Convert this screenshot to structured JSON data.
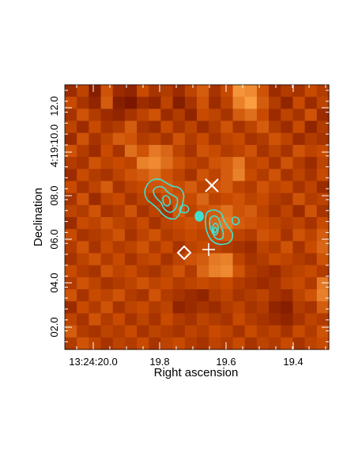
{
  "chart_data": {
    "type": "heatmap",
    "xlabel": "Right ascension",
    "ylabel": "Declination",
    "x_ticks": [
      "13:24:20.0",
      "19.8",
      "19.6",
      "19.4"
    ],
    "y_ticks": [
      "02.0",
      "04.0",
      "06.0",
      "08.0",
      "4:19:10.0",
      "12.0"
    ],
    "grid": false,
    "colors": {
      "colormap_dark": "#5a0000",
      "colormap_mid": "#c84a00",
      "colormap_bright": "#ffa040",
      "contour": "#40e0d0",
      "markers": "#ffffff"
    },
    "heatmap": {
      "rows": 22,
      "cols": 22,
      "values": [
        [
          0.3,
          0.45,
          0.2,
          0.55,
          0.3,
          0.25,
          0.5,
          0.35,
          0.4,
          0.3,
          0.45,
          0.6,
          0.35,
          0.5,
          0.9,
          0.85,
          0.55,
          0.3,
          0.4,
          0.35,
          0.5,
          0.4
        ],
        [
          0.5,
          0.35,
          0.25,
          0.6,
          0.2,
          0.15,
          0.3,
          0.25,
          0.45,
          0.2,
          0.35,
          0.55,
          0.3,
          0.45,
          0.8,
          0.95,
          0.6,
          0.4,
          0.25,
          0.5,
          0.3,
          0.45
        ],
        [
          0.35,
          0.55,
          0.4,
          0.3,
          0.25,
          0.35,
          0.45,
          0.55,
          0.3,
          0.4,
          0.25,
          0.5,
          0.45,
          0.35,
          0.6,
          0.7,
          0.5,
          0.3,
          0.45,
          0.35,
          0.55,
          0.3
        ],
        [
          0.45,
          0.3,
          0.5,
          0.35,
          0.4,
          0.6,
          0.35,
          0.3,
          0.5,
          0.35,
          0.45,
          0.3,
          0.4,
          0.55,
          0.35,
          0.45,
          0.6,
          0.4,
          0.3,
          0.5,
          0.25,
          0.4
        ],
        [
          0.3,
          0.55,
          0.35,
          0.45,
          0.6,
          0.55,
          0.4,
          0.45,
          0.35,
          0.55,
          0.4,
          0.5,
          0.35,
          0.45,
          0.5,
          0.35,
          0.4,
          0.55,
          0.45,
          0.3,
          0.4,
          0.35
        ],
        [
          0.55,
          0.4,
          0.3,
          0.5,
          0.35,
          0.7,
          0.55,
          0.75,
          0.65,
          0.45,
          0.35,
          0.55,
          0.5,
          0.4,
          0.45,
          0.55,
          0.35,
          0.45,
          0.35,
          0.55,
          0.45,
          0.5
        ],
        [
          0.4,
          0.35,
          0.55,
          0.45,
          0.5,
          0.45,
          0.8,
          0.85,
          0.7,
          0.55,
          0.45,
          0.4,
          0.55,
          0.6,
          0.75,
          0.45,
          0.5,
          0.35,
          0.55,
          0.4,
          0.3,
          0.45
        ],
        [
          0.3,
          0.5,
          0.4,
          0.35,
          0.45,
          0.55,
          0.6,
          0.7,
          0.55,
          0.45,
          0.35,
          0.55,
          0.45,
          0.6,
          0.8,
          0.5,
          0.4,
          0.55,
          0.35,
          0.45,
          0.35,
          0.5
        ],
        [
          0.5,
          0.35,
          0.45,
          0.6,
          0.35,
          0.45,
          0.5,
          0.55,
          0.6,
          0.5,
          0.6,
          0.45,
          0.55,
          0.6,
          0.45,
          0.4,
          0.55,
          0.45,
          0.5,
          0.35,
          0.45,
          0.3
        ],
        [
          0.35,
          0.55,
          0.3,
          0.45,
          0.5,
          0.35,
          0.45,
          0.4,
          0.5,
          0.55,
          0.5,
          0.65,
          0.45,
          0.5,
          0.55,
          0.45,
          0.5,
          0.4,
          0.35,
          0.55,
          0.4,
          0.45
        ],
        [
          0.45,
          0.4,
          0.55,
          0.35,
          0.4,
          0.55,
          0.35,
          0.45,
          0.35,
          0.6,
          0.45,
          0.55,
          0.6,
          0.7,
          0.55,
          0.6,
          0.45,
          0.35,
          0.45,
          0.3,
          0.55,
          0.35
        ],
        [
          0.3,
          0.5,
          0.45,
          0.55,
          0.45,
          0.4,
          0.5,
          0.35,
          0.45,
          0.5,
          0.55,
          0.5,
          0.65,
          0.75,
          0.6,
          0.55,
          0.5,
          0.45,
          0.4,
          0.45,
          0.35,
          0.5
        ],
        [
          0.5,
          0.35,
          0.4,
          0.45,
          0.55,
          0.35,
          0.45,
          0.55,
          0.4,
          0.45,
          0.5,
          0.45,
          0.5,
          0.6,
          0.45,
          0.4,
          0.55,
          0.5,
          0.35,
          0.55,
          0.45,
          0.6
        ],
        [
          0.4,
          0.55,
          0.35,
          0.5,
          0.4,
          0.45,
          0.55,
          0.4,
          0.5,
          0.35,
          0.45,
          0.5,
          0.45,
          0.4,
          0.35,
          0.3,
          0.45,
          0.4,
          0.55,
          0.35,
          0.5,
          0.65
        ],
        [
          0.35,
          0.45,
          0.55,
          0.4,
          0.5,
          0.35,
          0.45,
          0.5,
          0.35,
          0.45,
          0.55,
          0.6,
          0.75,
          0.8,
          0.45,
          0.35,
          0.4,
          0.5,
          0.45,
          0.4,
          0.35,
          0.55
        ],
        [
          0.5,
          0.4,
          0.35,
          0.55,
          0.45,
          0.5,
          0.4,
          0.35,
          0.45,
          0.55,
          0.4,
          0.65,
          0.8,
          0.85,
          0.55,
          0.4,
          0.35,
          0.3,
          0.4,
          0.45,
          0.5,
          0.4
        ],
        [
          0.4,
          0.55,
          0.45,
          0.35,
          0.4,
          0.45,
          0.55,
          0.45,
          0.5,
          0.4,
          0.45,
          0.5,
          0.45,
          0.5,
          0.4,
          0.35,
          0.3,
          0.35,
          0.45,
          0.5,
          0.4,
          0.75
        ],
        [
          0.55,
          0.35,
          0.5,
          0.45,
          0.55,
          0.4,
          0.35,
          0.55,
          0.4,
          0.35,
          0.3,
          0.25,
          0.4,
          0.45,
          0.35,
          0.4,
          0.45,
          0.35,
          0.3,
          0.45,
          0.55,
          0.8
        ],
        [
          0.3,
          0.5,
          0.4,
          0.55,
          0.35,
          0.45,
          0.5,
          0.4,
          0.45,
          0.25,
          0.3,
          0.35,
          0.3,
          0.4,
          0.45,
          0.35,
          0.4,
          0.25,
          0.2,
          0.4,
          0.35,
          0.6
        ],
        [
          0.45,
          0.35,
          0.55,
          0.4,
          0.5,
          0.35,
          0.45,
          0.35,
          0.5,
          0.4,
          0.35,
          0.45,
          0.4,
          0.35,
          0.5,
          0.4,
          0.35,
          0.3,
          0.25,
          0.35,
          0.45,
          0.4
        ],
        [
          0.6,
          0.4,
          0.35,
          0.45,
          0.4,
          0.5,
          0.35,
          0.45,
          0.4,
          0.35,
          0.45,
          0.4,
          0.5,
          0.45,
          0.35,
          0.5,
          0.4,
          0.45,
          0.35,
          0.5,
          0.4,
          0.55
        ],
        [
          0.4,
          0.55,
          0.45,
          0.35,
          0.45,
          0.4,
          0.5,
          0.35,
          0.45,
          0.5,
          0.4,
          0.35,
          0.45,
          0.4,
          0.5,
          0.35,
          0.45,
          0.4,
          0.5,
          0.35,
          0.45,
          0.5
        ]
      ]
    },
    "markers": [
      {
        "shape": "x",
        "label": ""
      },
      {
        "shape": "diamond",
        "label": ""
      },
      {
        "shape": "plus",
        "label": ""
      }
    ]
  }
}
